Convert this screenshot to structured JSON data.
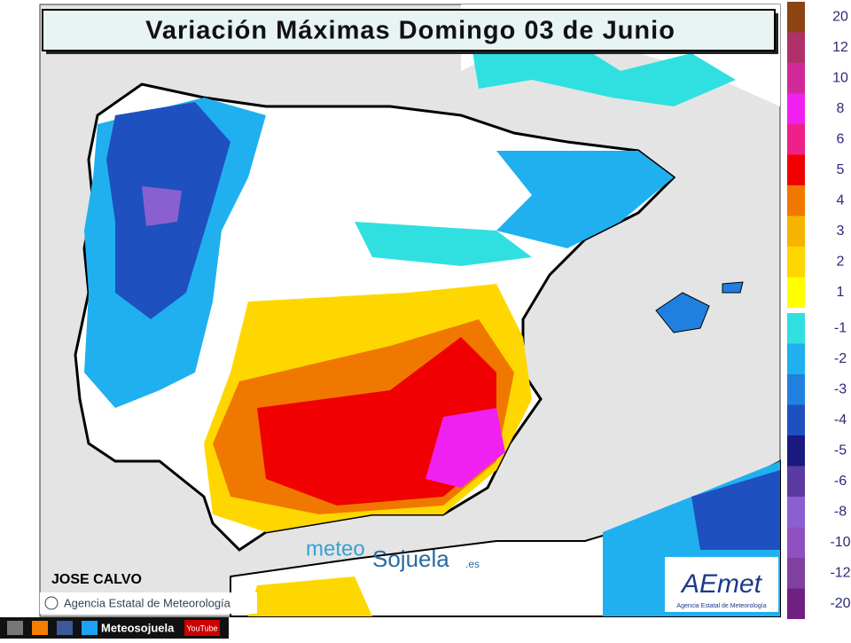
{
  "header": {
    "title": "Variación Máximas  Domingo 03 de Junio"
  },
  "legend": {
    "warm": [
      {
        "label": "20",
        "color": "#8b4513"
      },
      {
        "label": "12",
        "color": "#b0306a"
      },
      {
        "label": "10",
        "color": "#d02a9a"
      },
      {
        "label": "8",
        "color": "#f020f0"
      },
      {
        "label": "6",
        "color": "#f0208a"
      },
      {
        "label": "5",
        "color": "#f00000"
      },
      {
        "label": "4",
        "color": "#f07800"
      },
      {
        "label": "3",
        "color": "#f5b400"
      },
      {
        "label": "2",
        "color": "#ffd700"
      },
      {
        "label": "1",
        "color": "#ffff00"
      }
    ],
    "cool": [
      {
        "label": "-1",
        "color": "#30e0e0"
      },
      {
        "label": "-2",
        "color": "#20b0f0"
      },
      {
        "label": "-3",
        "color": "#2080e0"
      },
      {
        "label": "-4",
        "color": "#1e50c0"
      },
      {
        "label": "-5",
        "color": "#1a1a80"
      },
      {
        "label": "-6",
        "color": "#5a3aa0"
      },
      {
        "label": "-8",
        "color": "#8a60d0"
      },
      {
        "label": "-10",
        "color": "#9050c0"
      },
      {
        "label": "-12",
        "color": "#8040a0"
      },
      {
        "label": "-20",
        "color": "#702080"
      }
    ]
  },
  "credits": {
    "author": "JOSE CALVO",
    "agency": "Agencia Estatal de Meteorología",
    "brand_a": "meteo",
    "brand_b": "Sojuela",
    "brand_c": ".es",
    "logo": "AEmet",
    "logo_sub": "Agencia Estatal de Meteorología"
  },
  "footer": {
    "site": "Meteosojuela",
    "youtube": "YouTube"
  }
}
